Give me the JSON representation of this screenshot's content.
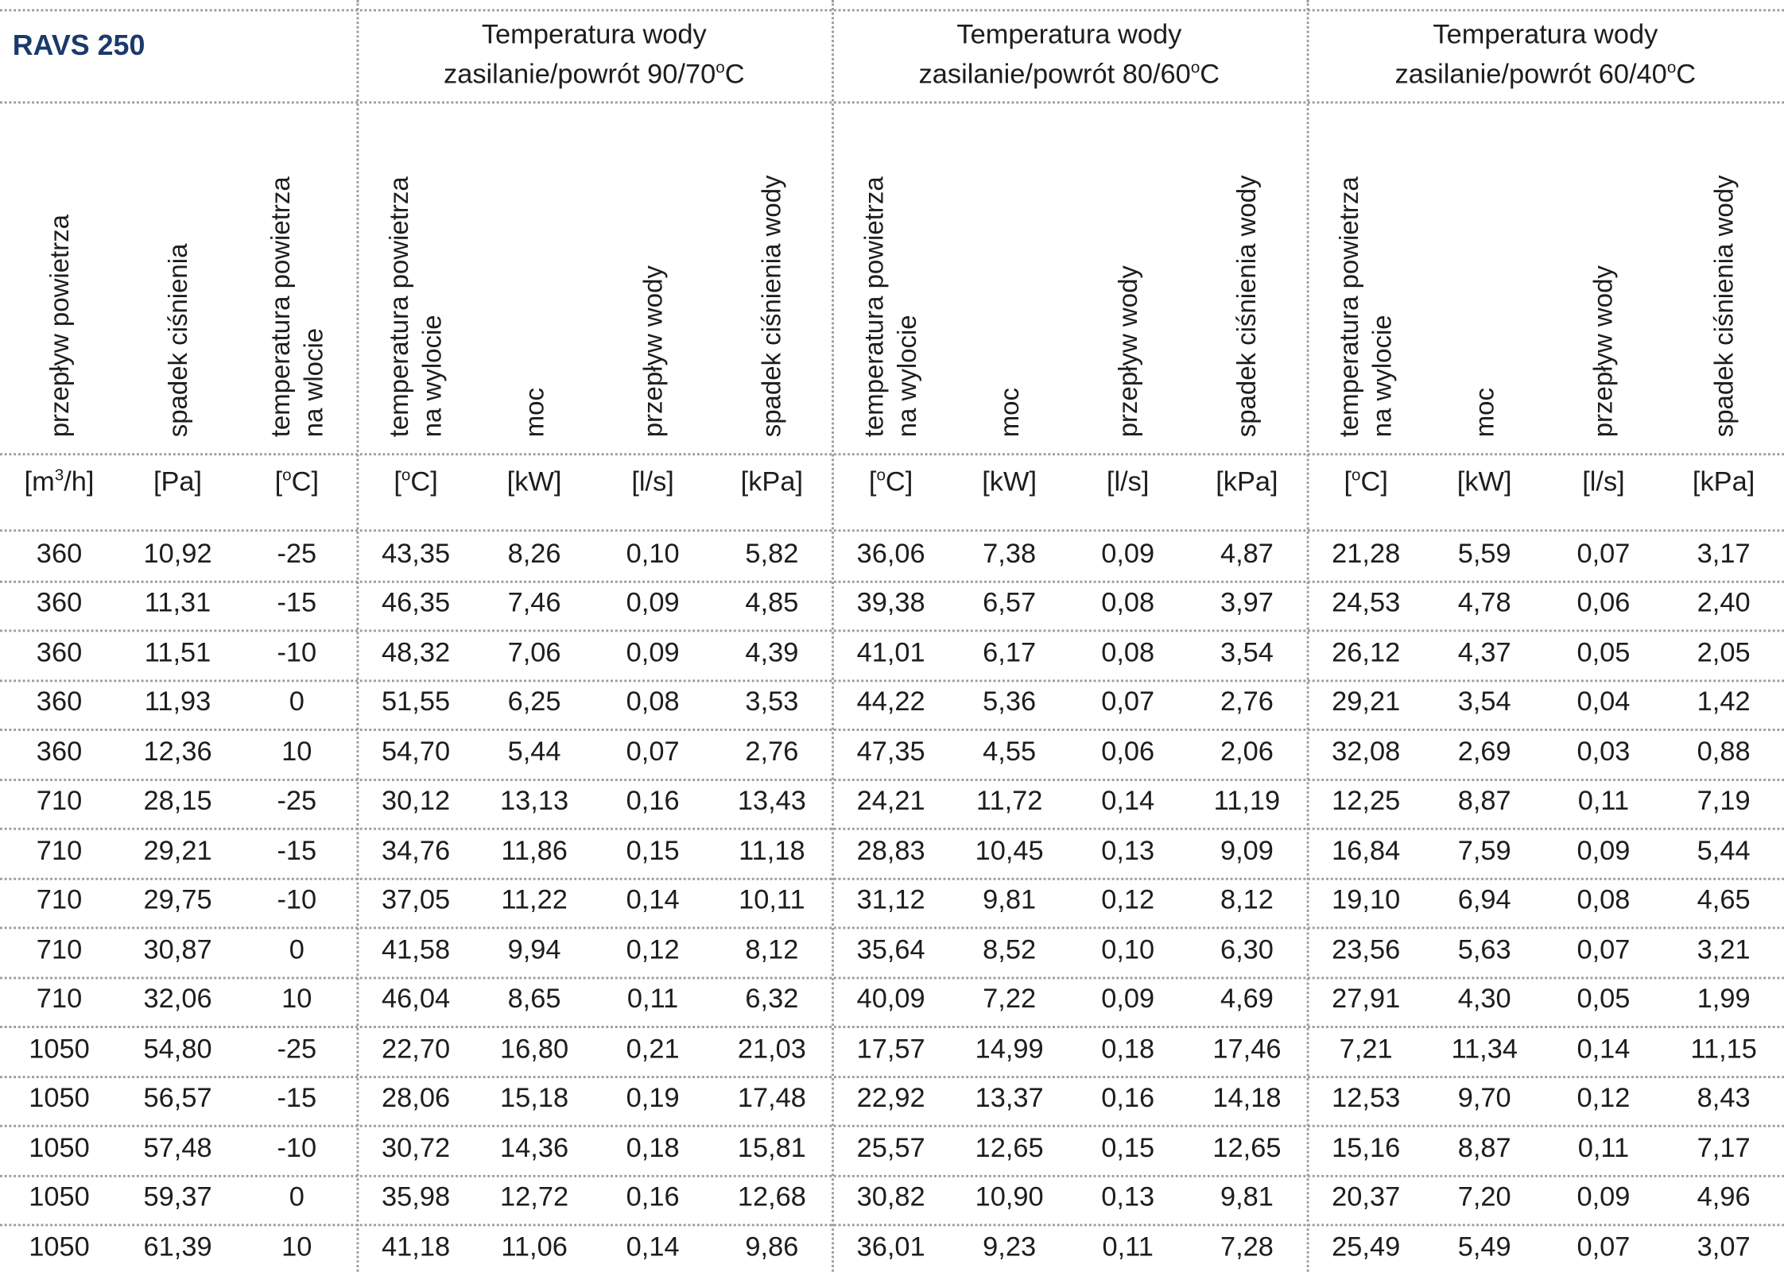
{
  "title": "RAVS 250",
  "groups": [
    {
      "line1": "Temperatura wody",
      "line2": "zasilanie/powrót 90/70°C"
    },
    {
      "line1": "Temperatura wody",
      "line2": "zasilanie/powrót 80/60°C"
    },
    {
      "line1": "Temperatura wody",
      "line2": "zasilanie/powrót 60/40°C"
    }
  ],
  "column_headers": [
    [
      "przepływ powietrza"
    ],
    [
      "spadek ciśnienia"
    ],
    [
      "temperatura powietrza",
      "na wlocie"
    ],
    [
      "temperatura powietrza",
      "na wylocie"
    ],
    [
      "moc"
    ],
    [
      "przepływ wody"
    ],
    [
      "spadek ciśnienia wody"
    ],
    [
      "temperatura powietrza",
      "na wylocie"
    ],
    [
      "moc"
    ],
    [
      "przepływ wody"
    ],
    [
      "spadek ciśnienia wody"
    ],
    [
      "temperatura powietrza",
      "na wylocie"
    ],
    [
      "moc"
    ],
    [
      "przepływ wody"
    ],
    [
      "spadek ciśnienia wody"
    ]
  ],
  "units": [
    "[m3/h]",
    "[Pa]",
    "[°C]",
    "[°C]",
    "[kW]",
    "[l/s]",
    "[kPa]",
    "[°C]",
    "[kW]",
    "[l/s]",
    "[kPa]",
    "[°C]",
    "[kW]",
    "[l/s]",
    "[kPa]"
  ],
  "rows": [
    [
      "360",
      "10,92",
      "-25",
      "43,35",
      "8,26",
      "0,10",
      "5,82",
      "36,06",
      "7,38",
      "0,09",
      "4,87",
      "21,28",
      "5,59",
      "0,07",
      "3,17"
    ],
    [
      "360",
      "11,31",
      "-15",
      "46,35",
      "7,46",
      "0,09",
      "4,85",
      "39,38",
      "6,57",
      "0,08",
      "3,97",
      "24,53",
      "4,78",
      "0,06",
      "2,40"
    ],
    [
      "360",
      "11,51",
      "-10",
      "48,32",
      "7,06",
      "0,09",
      "4,39",
      "41,01",
      "6,17",
      "0,08",
      "3,54",
      "26,12",
      "4,37",
      "0,05",
      "2,05"
    ],
    [
      "360",
      "11,93",
      "0",
      "51,55",
      "6,25",
      "0,08",
      "3,53",
      "44,22",
      "5,36",
      "0,07",
      "2,76",
      "29,21",
      "3,54",
      "0,04",
      "1,42"
    ],
    [
      "360",
      "12,36",
      "10",
      "54,70",
      "5,44",
      "0,07",
      "2,76",
      "47,35",
      "4,55",
      "0,06",
      "2,06",
      "32,08",
      "2,69",
      "0,03",
      "0,88"
    ],
    [
      "710",
      "28,15",
      "-25",
      "30,12",
      "13,13",
      "0,16",
      "13,43",
      "24,21",
      "11,72",
      "0,14",
      "11,19",
      "12,25",
      "8,87",
      "0,11",
      "7,19"
    ],
    [
      "710",
      "29,21",
      "-15",
      "34,76",
      "11,86",
      "0,15",
      "11,18",
      "28,83",
      "10,45",
      "0,13",
      "9,09",
      "16,84",
      "7,59",
      "0,09",
      "5,44"
    ],
    [
      "710",
      "29,75",
      "-10",
      "37,05",
      "11,22",
      "0,14",
      "10,11",
      "31,12",
      "9,81",
      "0,12",
      "8,12",
      "19,10",
      "6,94",
      "0,08",
      "4,65"
    ],
    [
      "710",
      "30,87",
      "0",
      "41,58",
      "9,94",
      "0,12",
      "8,12",
      "35,64",
      "8,52",
      "0,10",
      "6,30",
      "23,56",
      "5,63",
      "0,07",
      "3,21"
    ],
    [
      "710",
      "32,06",
      "10",
      "46,04",
      "8,65",
      "0,11",
      "6,32",
      "40,09",
      "7,22",
      "0,09",
      "4,69",
      "27,91",
      "4,30",
      "0,05",
      "1,99"
    ],
    [
      "1050",
      "54,80",
      "-25",
      "22,70",
      "16,80",
      "0,21",
      "21,03",
      "17,57",
      "14,99",
      "0,18",
      "17,46",
      "7,21",
      "11,34",
      "0,14",
      "11,15"
    ],
    [
      "1050",
      "56,57",
      "-15",
      "28,06",
      "15,18",
      "0,19",
      "17,48",
      "22,92",
      "13,37",
      "0,16",
      "14,18",
      "12,53",
      "9,70",
      "0,12",
      "8,43"
    ],
    [
      "1050",
      "57,48",
      "-10",
      "30,72",
      "14,36",
      "0,18",
      "15,81",
      "25,57",
      "12,65",
      "0,15",
      "12,65",
      "15,16",
      "8,87",
      "0,11",
      "7,17"
    ],
    [
      "1050",
      "59,37",
      "0",
      "35,98",
      "12,72",
      "0,16",
      "12,68",
      "30,82",
      "10,90",
      "0,13",
      "9,81",
      "20,37",
      "7,20",
      "0,09",
      "4,96"
    ],
    [
      "1050",
      "61,39",
      "10",
      "41,18",
      "11,06",
      "0,14",
      "9,86",
      "36,01",
      "9,23",
      "0,11",
      "7,28",
      "25,49",
      "5,49",
      "0,07",
      "3,07"
    ]
  ]
}
